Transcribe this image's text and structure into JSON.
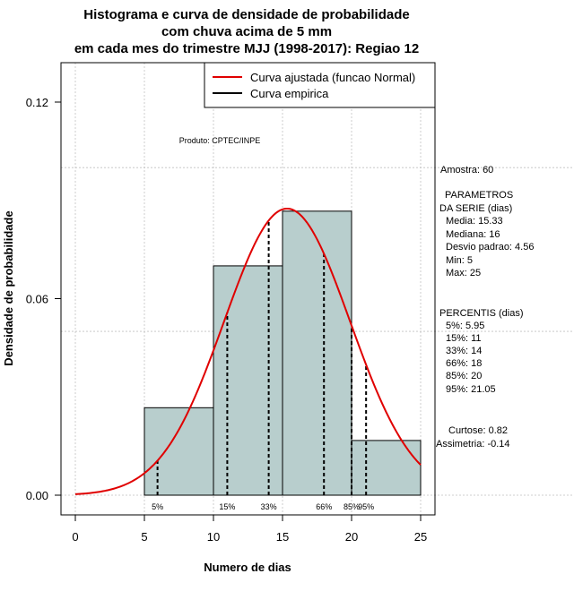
{
  "chart_data": {
    "type": "histogram",
    "title_lines": [
      "Histograma e curva de densidade de probabilidade",
      "com chuva acima de 5 mm",
      "em cada mes do trimestre MJJ (1998-2017): Regiao 12"
    ],
    "xlabel": "Numero de dias",
    "ylabel": "Densidade de probabilidade",
    "xlim": [
      -1,
      26
    ],
    "ylim": [
      -0.005,
      0.13
    ],
    "x_ticks": [
      0,
      5,
      10,
      15,
      20,
      25
    ],
    "y_ticks": [
      0.0,
      0.06,
      0.12
    ],
    "y_tick_labels": [
      "0.00",
      "0.06",
      "0.12"
    ],
    "bins": [
      {
        "x0": 5,
        "x1": 10,
        "density": 0.0267
      },
      {
        "x0": 10,
        "x1": 15,
        "density": 0.07
      },
      {
        "x0": 15,
        "x1": 20,
        "density": 0.0867
      },
      {
        "x0": 20,
        "x1": 25,
        "density": 0.0167
      }
    ],
    "bar_color": "#b8cecd",
    "normal_curve": {
      "mean": 15.33,
      "sd": 4.56,
      "xmin": 0,
      "xmax": 25,
      "color": "#e00000"
    },
    "grid_x": [
      0,
      5,
      10,
      15,
      20,
      25
    ],
    "grid_y": [
      0.0,
      0.05,
      0.1
    ],
    "percentile_lines": [
      {
        "label": "5%",
        "x": 5.95
      },
      {
        "label": "15%",
        "x": 11
      },
      {
        "label": "33%",
        "x": 14
      },
      {
        "label": "66%",
        "x": 18
      },
      {
        "label": "85%",
        "x": 20
      },
      {
        "label": "95%",
        "x": 21.05
      }
    ],
    "legend": [
      {
        "label": "Curva ajustada (funcao Normal)",
        "color": "#e00000"
      },
      {
        "label": "Curva empirica",
        "color": "#000000"
      }
    ],
    "legend_position": "top-right",
    "annotation": "Produto: CPTEC/INPE"
  },
  "side_panel": {
    "amostra": "Amostra: 60",
    "param_title_1": "PARAMETROS",
    "param_title_2": "DA SERIE (dias)",
    "media": "Media: 15.33",
    "mediana": "Mediana: 16",
    "desvio": "Desvio padrao: 4.56",
    "min": "Min: 5",
    "max": "Max: 25",
    "perc_title": "PERCENTIS (dias)",
    "p5": "5%: 5.95",
    "p15": "15%: 11",
    "p33": "33%: 14",
    "p66": "66%: 18",
    "p85": "85%: 20",
    "p95": "95%: 21.05",
    "curtose": "Curtose: 0.82",
    "assimetria": "Assimetria: -0.14"
  }
}
